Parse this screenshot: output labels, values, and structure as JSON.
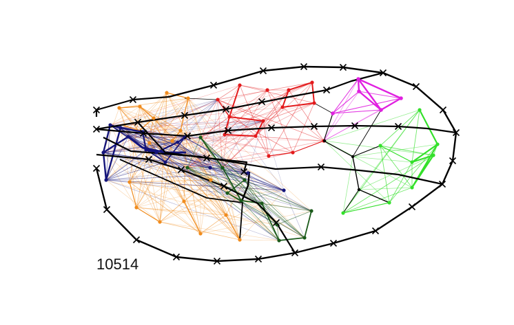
{
  "label": "10514",
  "colors": {
    "black": "#000000",
    "orange": "#f08c1e",
    "navy": "#14147a",
    "darkgreen": "#1a5a1a",
    "red": "#e31a1c",
    "magenta": "#e020e0",
    "green": "#33e02a"
  },
  "clusters": [
    "orange",
    "navy",
    "darkgreen",
    "red",
    "magenta",
    "green"
  ],
  "icons": {
    "node": "dot-marker",
    "boundary": "x-marker"
  }
}
